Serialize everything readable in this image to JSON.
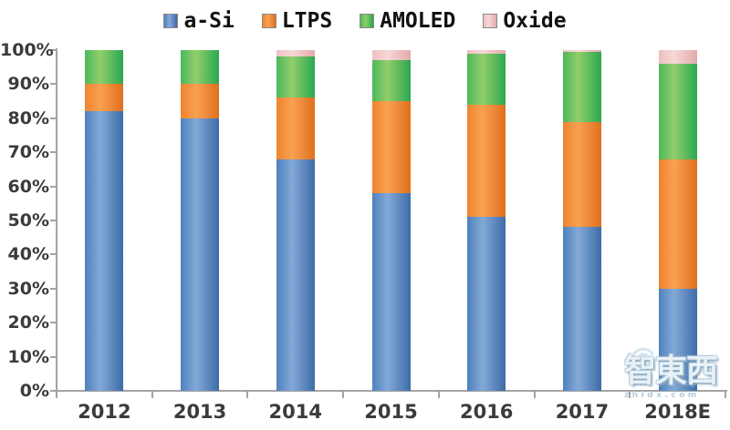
{
  "chart_data": {
    "type": "bar",
    "stacked": true,
    "unit": "%",
    "title": "",
    "categories": [
      "2012",
      "2013",
      "2014",
      "2015",
      "2016",
      "2017",
      "2018E"
    ],
    "series": [
      {
        "name": "a-Si",
        "color": "#4f81bd",
        "color_light": "#84a9d7",
        "color_dark": "#3c6ca8",
        "values": [
          82,
          80,
          68,
          58,
          51,
          48,
          30
        ]
      },
      {
        "name": "LTPS",
        "color": "#ef8430",
        "color_light": "#f8a152",
        "color_dark": "#e06f1d",
        "values": [
          8,
          10,
          18,
          27,
          33,
          31,
          38
        ]
      },
      {
        "name": "AMOLED",
        "color": "#4cb85c",
        "color_light": "#92cd6b",
        "color_dark": "#29a850",
        "values": [
          10,
          10,
          12,
          12,
          15,
          20.5,
          28
        ]
      },
      {
        "name": "Oxide",
        "color": "#efc0c1",
        "color_light": "#f7d7d7",
        "color_dark": "#e2aaab",
        "values": [
          0,
          0,
          2,
          3,
          1,
          0.5,
          4
        ]
      }
    ],
    "yticks": [
      "0%",
      "10%",
      "20%",
      "30%",
      "40%",
      "50%",
      "60%",
      "70%",
      "80%",
      "90%",
      "100%"
    ],
    "ylim": [
      0,
      100
    ],
    "legend_position": "top",
    "grid": false
  },
  "watermark": {
    "text": "智東西",
    "subtext": "zhidx.com",
    "icon": "wifi-icon"
  }
}
